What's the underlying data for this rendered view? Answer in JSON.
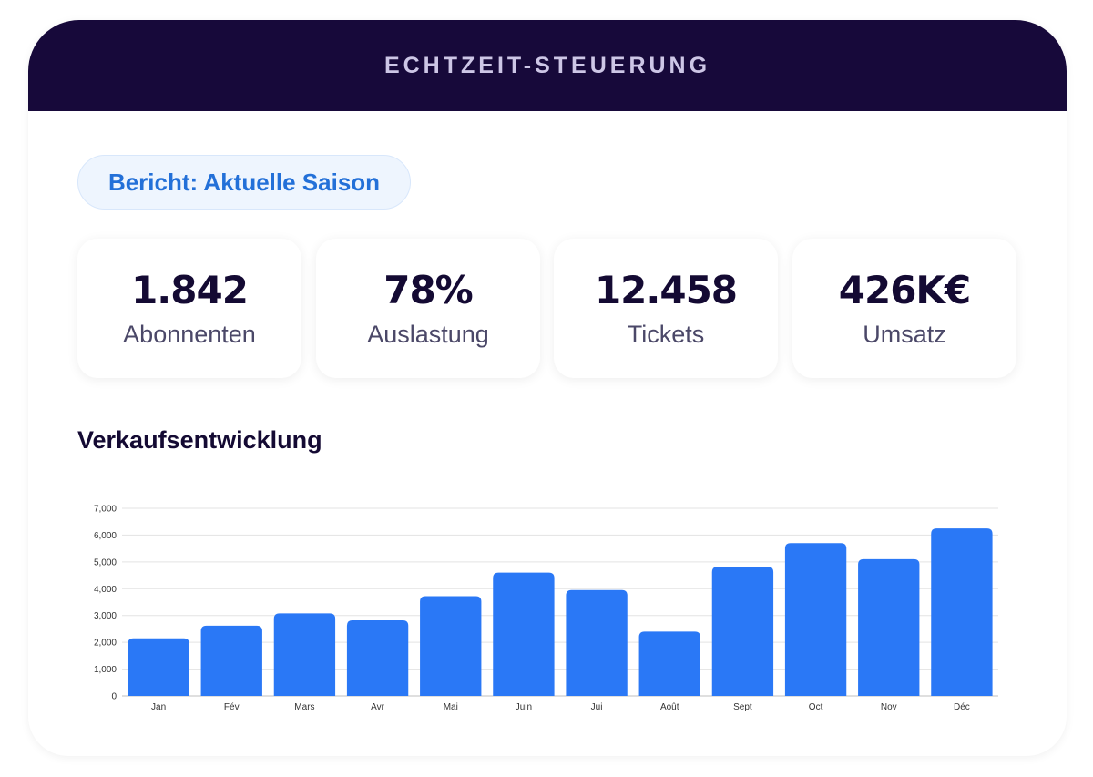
{
  "header": {
    "title": "ECHTZEIT-STEUERUNG"
  },
  "report_pill": {
    "label": "Bericht: Aktuelle Saison"
  },
  "stats": [
    {
      "value": "1.842",
      "label": "Abonnenten"
    },
    {
      "value": "78%",
      "label": "Auslastung"
    },
    {
      "value": "12.458",
      "label": "Tickets"
    },
    {
      "value": "426K€",
      "label": "Umsatz"
    }
  ],
  "section": {
    "title": "Verkaufsentwicklung"
  },
  "colors": {
    "header_bg": "#17093a",
    "accent": "#2370d8",
    "bar": "#2a78f6"
  },
  "chart_data": {
    "type": "bar",
    "title": "",
    "xlabel": "",
    "ylabel": "",
    "categories": [
      "Jan",
      "Fév",
      "Mars",
      "Avr",
      "Mai",
      "Juin",
      "Jui",
      "Août",
      "Sept",
      "Oct",
      "Nov",
      "Déc"
    ],
    "values": [
      2150,
      2620,
      3080,
      2820,
      3720,
      4600,
      3950,
      2400,
      4820,
      5700,
      5100,
      6250
    ],
    "ylim": [
      0,
      7000
    ],
    "yticks": [
      "0",
      "1,000",
      "2,000",
      "3,000",
      "4,000",
      "5,000",
      "6,000",
      "7,000"
    ],
    "grid": true,
    "legend": "none"
  }
}
